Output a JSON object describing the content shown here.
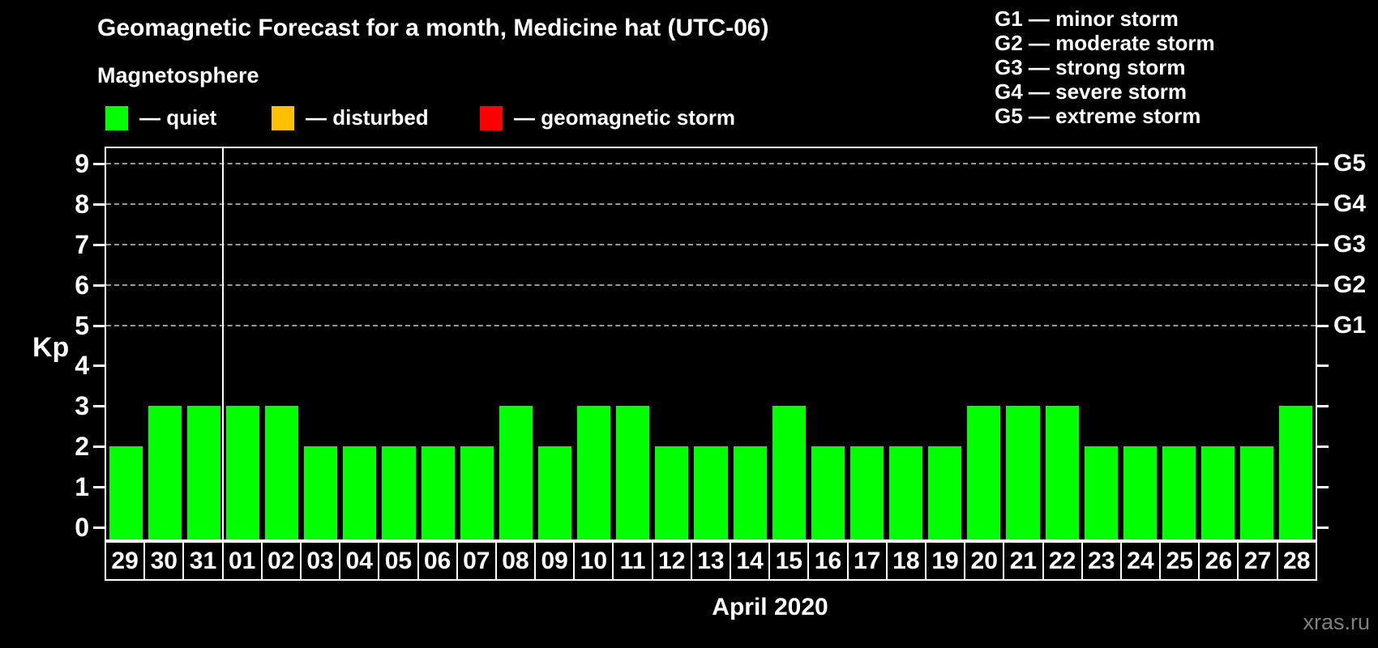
{
  "header": {
    "title": "Geomagnetic Forecast for a month, Medicine hat (UTC-06)",
    "subtitle": "Magnetosphere",
    "legend": [
      {
        "key": "quiet",
        "label": "— quiet",
        "color": "#00ff00"
      },
      {
        "key": "disturbed",
        "label": "— disturbed",
        "color": "#ffc000"
      },
      {
        "key": "storm",
        "label": "— geomagnetic storm",
        "color": "#ff0000"
      }
    ],
    "g_legend": [
      {
        "label": "G1 — minor storm"
      },
      {
        "label": "G2 — moderate storm"
      },
      {
        "label": "G3 — strong storm"
      },
      {
        "label": "G4 — severe storm"
      },
      {
        "label": "G5 — extreme storm"
      }
    ]
  },
  "chart_data": {
    "type": "bar",
    "title": "Geomagnetic Forecast for a month, Medicine hat (UTC-06)",
    "ylabel": "Kp",
    "xlabel": "April 2020",
    "categories": [
      "29",
      "30",
      "31",
      "01",
      "02",
      "03",
      "04",
      "05",
      "06",
      "07",
      "08",
      "09",
      "10",
      "11",
      "12",
      "13",
      "14",
      "15",
      "16",
      "17",
      "18",
      "19",
      "20",
      "21",
      "22",
      "23",
      "24",
      "25",
      "26",
      "27",
      "28"
    ],
    "values": [
      2,
      3,
      3,
      3,
      3,
      2,
      2,
      2,
      2,
      2,
      3,
      2,
      3,
      3,
      2,
      2,
      2,
      3,
      2,
      2,
      2,
      2,
      3,
      3,
      3,
      2,
      2,
      2,
      2,
      2,
      3
    ],
    "statuses": [
      "quiet",
      "quiet",
      "quiet",
      "quiet",
      "quiet",
      "quiet",
      "quiet",
      "quiet",
      "quiet",
      "quiet",
      "quiet",
      "quiet",
      "quiet",
      "quiet",
      "quiet",
      "quiet",
      "quiet",
      "quiet",
      "quiet",
      "quiet",
      "quiet",
      "quiet",
      "quiet",
      "quiet",
      "quiet",
      "quiet",
      "quiet",
      "quiet",
      "quiet",
      "quiet",
      "quiet"
    ],
    "ylim": [
      0,
      9
    ],
    "yticks": [
      0,
      1,
      2,
      3,
      4,
      5,
      6,
      7,
      8,
      9
    ],
    "gridlines_at": [
      5,
      6,
      7,
      8,
      9
    ],
    "grid_style": "dashed",
    "right_axis_labels": [
      {
        "kp": 5,
        "label": "G1"
      },
      {
        "kp": 6,
        "label": "G2"
      },
      {
        "kp": 7,
        "label": "G3"
      },
      {
        "kp": 8,
        "label": "G4"
      },
      {
        "kp": 9,
        "label": "G5"
      }
    ],
    "month_separator_after_index": 2,
    "legend_position": "top-left"
  },
  "footer": {
    "xaxis_title": "April 2020",
    "watermark": "xras.ru"
  },
  "colors": {
    "background": "#000000",
    "text": "#ffffff",
    "quiet": "#00ff00",
    "disturbed": "#ffc000",
    "storm": "#ff0000",
    "grid": "#999999",
    "frame": "#ffffff",
    "watermark": "#808080"
  }
}
